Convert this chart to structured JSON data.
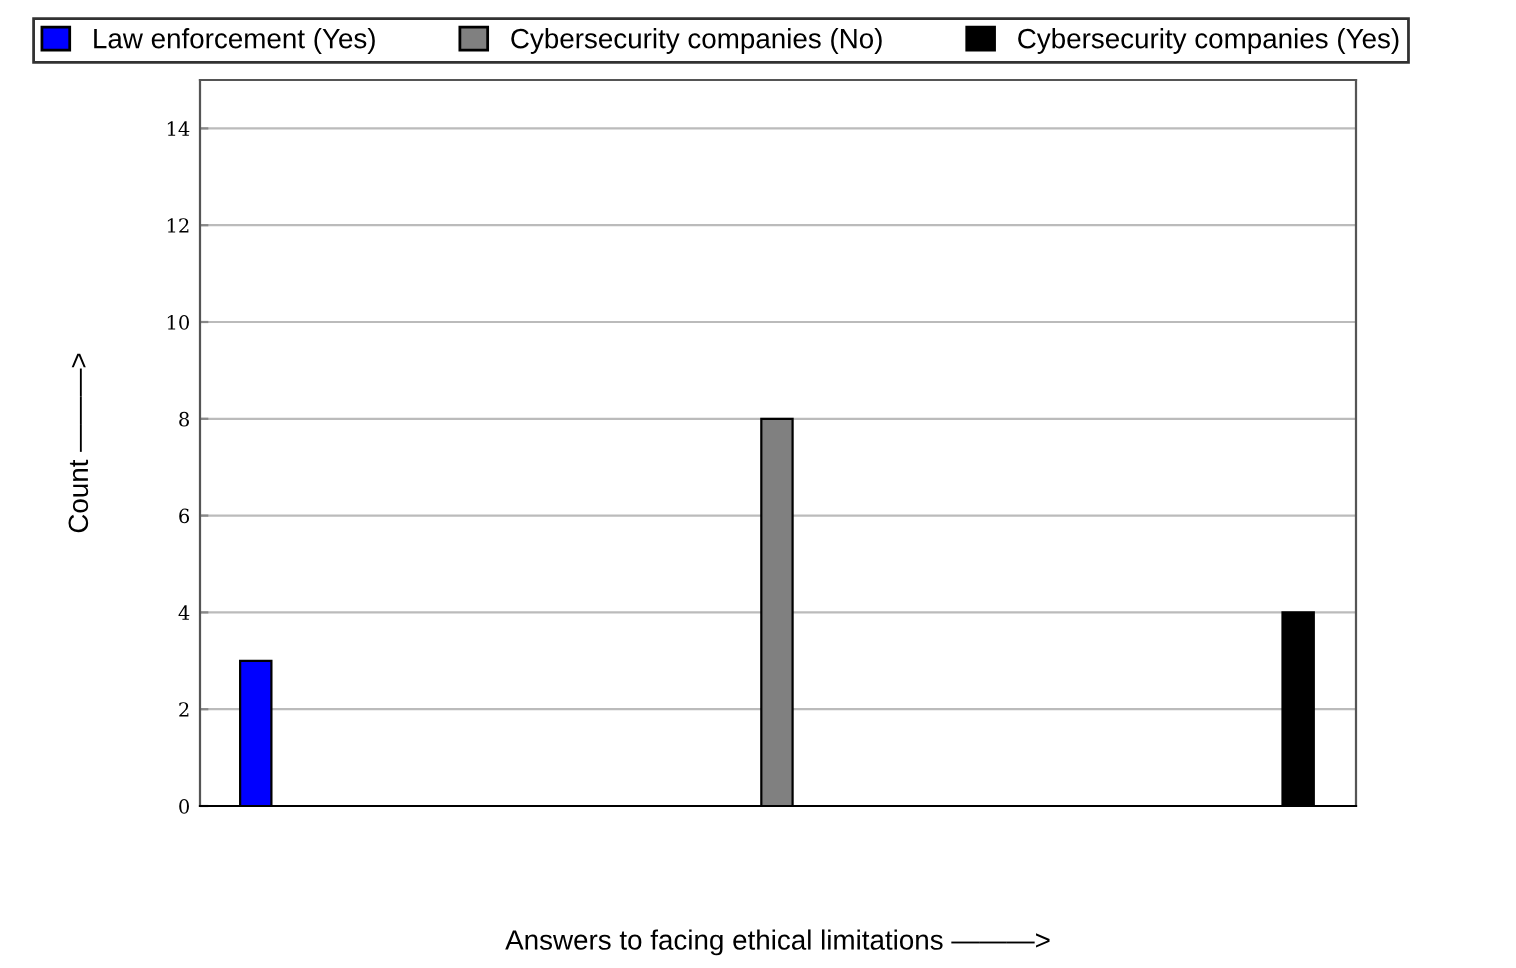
{
  "chart_data": {
    "type": "bar",
    "xlabel": "Answers to facing ethical limitations ———>",
    "ylabel": "Count ———>",
    "categories": [
      null,
      null,
      null
    ],
    "series": [
      {
        "name": "Law enforcement (Yes)",
        "color": "#0000ff",
        "values": [
          3,
          null,
          null
        ]
      },
      {
        "name": "Cybersecurity companies (No)",
        "color": "#808080",
        "values": [
          null,
          8,
          null
        ]
      },
      {
        "name": "Cybersecurity companies (Yes)",
        "color": "#000000",
        "values": [
          null,
          null,
          4
        ]
      }
    ],
    "ylim": [
      0,
      15
    ],
    "yticks": [
      0,
      2,
      4,
      6,
      8,
      10,
      12,
      14
    ],
    "grid": "y",
    "legend": "top"
  }
}
